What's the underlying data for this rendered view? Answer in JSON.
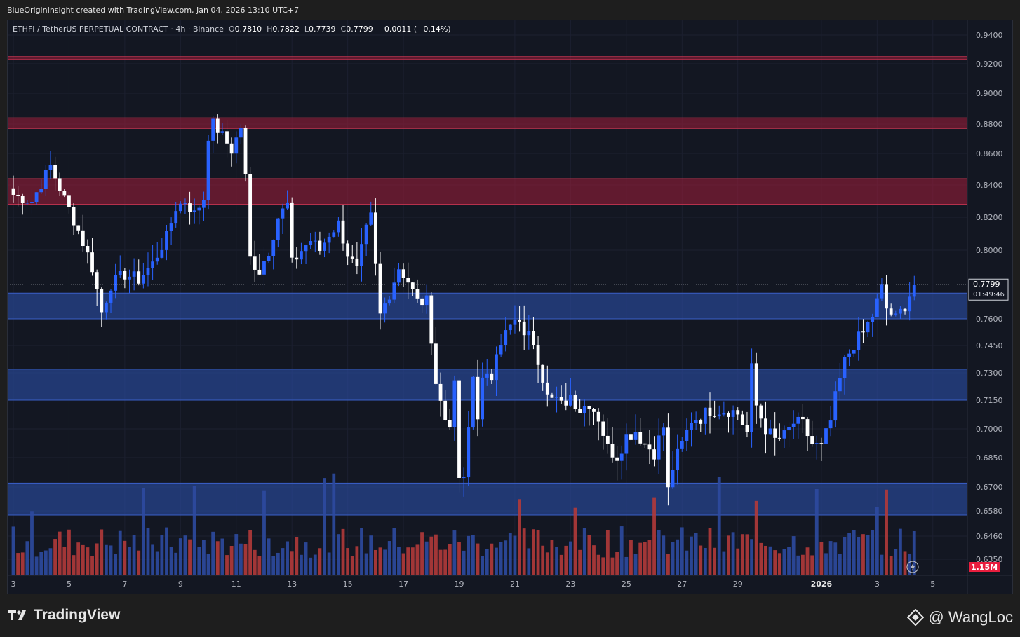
{
  "header": {
    "credit": "BlueOriginInsight created with TradingView.com, Jan 04, 2026 13:10 UTC+7"
  },
  "legend": {
    "symbol": "ETHFI / TetherUS PERPETUAL CONTRACT · 4h · Binance",
    "o_label": "O",
    "o_value": "0.7810",
    "h_label": "H",
    "h_value": "0.7822",
    "l_label": "L",
    "l_value": "0.7739",
    "c_label": "C",
    "c_value": "0.7799",
    "change": "−0.0011 (−0.14%)"
  },
  "price_tag": {
    "price": "0.7799",
    "countdown": "01:49:46"
  },
  "volume_tag": "1.15M",
  "footer": {
    "brand": "TradingView",
    "watermark": "@ WangLoc"
  },
  "colors": {
    "background": "#131722",
    "up_candle": "#2962ff",
    "down_candle": "#ffffff",
    "resistance_zone": "#a21e3a",
    "support_zone": "#2a4a9e",
    "volume_up": "#2e4aa0",
    "volume_down": "#b33a3a",
    "volume_tag": "#e91e3e"
  },
  "chart_data": {
    "type": "candlestick",
    "title": "ETHFI / TetherUS PERPETUAL CONTRACT · 4h · Binance",
    "ylim": [
      0.634,
      0.948
    ],
    "y_ticks": [
      "0.9400",
      "0.9200",
      "0.9000",
      "0.8800",
      "0.8600",
      "0.8400",
      "0.8200",
      "0.8000",
      "0.7600",
      "0.7450",
      "0.7300",
      "0.7150",
      "0.7000",
      "0.6850",
      "0.6700",
      "0.6580",
      "0.6460",
      "0.6350"
    ],
    "x_ticks": [
      {
        "label": "3",
        "i": 0
      },
      {
        "label": "5",
        "i": 12
      },
      {
        "label": "7",
        "i": 24
      },
      {
        "label": "9",
        "i": 36
      },
      {
        "label": "11",
        "i": 48
      },
      {
        "label": "13",
        "i": 60
      },
      {
        "label": "15",
        "i": 72
      },
      {
        "label": "17",
        "i": 84
      },
      {
        "label": "19",
        "i": 96
      },
      {
        "label": "21",
        "i": 108
      },
      {
        "label": "23",
        "i": 120
      },
      {
        "label": "25",
        "i": 132
      },
      {
        "label": "27",
        "i": 144
      },
      {
        "label": "29",
        "i": 156
      },
      {
        "label": "2026",
        "i": 174
      },
      {
        "label": "3",
        "i": 186
      },
      {
        "label": "5",
        "i": 198
      }
    ],
    "last_price": 0.7799,
    "zones": [
      {
        "kind": "resistance",
        "from": 0.923,
        "to": 0.925
      },
      {
        "kind": "resistance",
        "from": 0.877,
        "to": 0.884
      },
      {
        "kind": "resistance",
        "from": 0.828,
        "to": 0.844
      },
      {
        "kind": "support",
        "from": 0.76,
        "to": 0.775
      },
      {
        "kind": "support",
        "from": 0.715,
        "to": 0.732
      },
      {
        "kind": "support",
        "from": 0.656,
        "to": 0.672
      }
    ],
    "close_path": [
      [
        0,
        0.834
      ],
      [
        4,
        0.83
      ],
      [
        8,
        0.852
      ],
      [
        10,
        0.838
      ],
      [
        14,
        0.812
      ],
      [
        17,
        0.79
      ],
      [
        19,
        0.764
      ],
      [
        21,
        0.78
      ],
      [
        24,
        0.786
      ],
      [
        27,
        0.783
      ],
      [
        30,
        0.792
      ],
      [
        33,
        0.808
      ],
      [
        35,
        0.826
      ],
      [
        37,
        0.83
      ],
      [
        39,
        0.822
      ],
      [
        41,
        0.832
      ],
      [
        42,
        0.872
      ],
      [
        43,
        0.88
      ],
      [
        45,
        0.872
      ],
      [
        47,
        0.862
      ],
      [
        49,
        0.878
      ],
      [
        50,
        0.845
      ],
      [
        51,
        0.795
      ],
      [
        53,
        0.788
      ],
      [
        55,
        0.8
      ],
      [
        57,
        0.82
      ],
      [
        59,
        0.828
      ],
      [
        60,
        0.792
      ],
      [
        62,
        0.8
      ],
      [
        64,
        0.806
      ],
      [
        66,
        0.8
      ],
      [
        68,
        0.81
      ],
      [
        70,
        0.816
      ],
      [
        72,
        0.798
      ],
      [
        74,
        0.788
      ],
      [
        76,
        0.812
      ],
      [
        77,
        0.82
      ],
      [
        78,
        0.79
      ],
      [
        79,
        0.762
      ],
      [
        81,
        0.775
      ],
      [
        83,
        0.79
      ],
      [
        85,
        0.782
      ],
      [
        87,
        0.77
      ],
      [
        89,
        0.77
      ],
      [
        90,
        0.75
      ],
      [
        91,
        0.725
      ],
      [
        92,
        0.714
      ],
      [
        93,
        0.705
      ],
      [
        94,
        0.704
      ],
      [
        95,
        0.722
      ],
      [
        96,
        0.675
      ],
      [
        97,
        0.672
      ],
      [
        99,
        0.728
      ],
      [
        100,
        0.708
      ],
      [
        101,
        0.725
      ],
      [
        103,
        0.728
      ],
      [
        104,
        0.744
      ],
      [
        106,
        0.752
      ],
      [
        108,
        0.758
      ],
      [
        110,
        0.753
      ],
      [
        112,
        0.748
      ],
      [
        114,
        0.728
      ],
      [
        116,
        0.716
      ],
      [
        118,
        0.712
      ],
      [
        120,
        0.718
      ],
      [
        122,
        0.71
      ],
      [
        124,
        0.714
      ],
      [
        126,
        0.706
      ],
      [
        128,
        0.69
      ],
      [
        130,
        0.686
      ],
      [
        132,
        0.696
      ],
      [
        134,
        0.699
      ],
      [
        136,
        0.692
      ],
      [
        138,
        0.688
      ],
      [
        140,
        0.701
      ],
      [
        141,
        0.668
      ],
      [
        142,
        0.68
      ],
      [
        144,
        0.692
      ],
      [
        146,
        0.705
      ],
      [
        148,
        0.706
      ],
      [
        150,
        0.71
      ],
      [
        152,
        0.71
      ],
      [
        154,
        0.71
      ],
      [
        156,
        0.708
      ],
      [
        158,
        0.698
      ],
      [
        159,
        0.732
      ],
      [
        160,
        0.712
      ],
      [
        162,
        0.7
      ],
      [
        164,
        0.694
      ],
      [
        166,
        0.696
      ],
      [
        168,
        0.703
      ],
      [
        170,
        0.702
      ],
      [
        172,
        0.692
      ],
      [
        174,
        0.69
      ],
      [
        176,
        0.704
      ],
      [
        177,
        0.716
      ],
      [
        179,
        0.736
      ],
      [
        181,
        0.746
      ],
      [
        183,
        0.752
      ],
      [
        185,
        0.762
      ],
      [
        187,
        0.778
      ],
      [
        188,
        0.766
      ],
      [
        190,
        0.76
      ],
      [
        192,
        0.768
      ],
      [
        194,
        0.7799
      ]
    ]
  }
}
